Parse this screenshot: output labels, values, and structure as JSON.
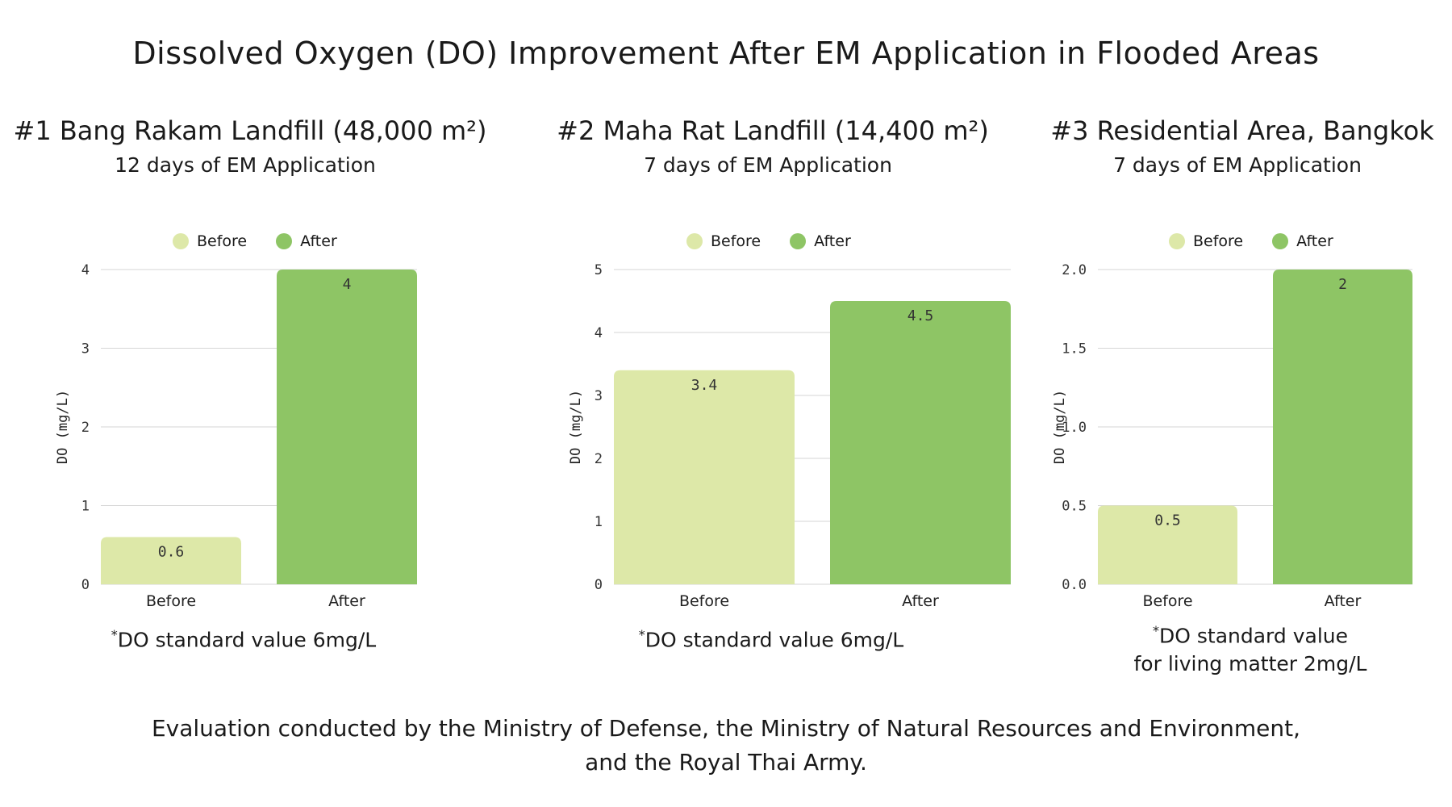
{
  "title": "Dissolved Oxygen (DO) Improvement After EM Application in Flooded Areas",
  "footer": {
    "line1": "Evaluation conducted by the Ministry of Defense, the Ministry of Natural Resources and Environment,",
    "line2": "and the Royal Thai Army."
  },
  "colors": {
    "before": "#dde8a8",
    "after": "#8ec565",
    "grid": "#d6d6d6"
  },
  "panels": [
    {
      "title": "#1 Bang Rakam Landfill (48,000 m²)",
      "subtitle": "12 days of EM Application",
      "note_mark": "*",
      "note_line1": "DO standard value 6mg/L",
      "note_line2": ""
    },
    {
      "title": "#2 Maha Rat Landfill (14,400 m²)",
      "subtitle": "7 days of EM Application",
      "note_mark": "*",
      "note_line1": "DO standard value 6mg/L",
      "note_line2": ""
    },
    {
      "title": "#3 Residential Area, Bangkok",
      "subtitle": "7 days of EM Application",
      "note_mark": "*",
      "note_line1": "DO standard value",
      "note_line2": "for living matter 2mg/L"
    }
  ],
  "chart_data": [
    {
      "type": "bar",
      "title": "#1 Bang Rakam Landfill (48,000 m²)",
      "categories": [
        "Before",
        "After"
      ],
      "values": [
        0.6,
        4
      ],
      "value_labels": [
        "0.6",
        "4"
      ],
      "legend": [
        "Before",
        "After"
      ],
      "ylabel": "DO (mg/L)",
      "xlabel": "",
      "ylim": [
        0,
        4
      ],
      "yticks": [
        0,
        1,
        2,
        3,
        4
      ],
      "ytick_labels": [
        "0",
        "1",
        "2",
        "3",
        "4"
      ]
    },
    {
      "type": "bar",
      "title": "#2 Maha Rat Landfill (14,400 m²)",
      "categories": [
        "Before",
        "After"
      ],
      "values": [
        3.4,
        4.5
      ],
      "value_labels": [
        "3.4",
        "4.5"
      ],
      "legend": [
        "Before",
        "After"
      ],
      "ylabel": "DO (mg/L)",
      "xlabel": "",
      "ylim": [
        0,
        5
      ],
      "yticks": [
        0,
        1,
        2,
        3,
        4,
        5
      ],
      "ytick_labels": [
        "0",
        "1",
        "2",
        "3",
        "4",
        "5"
      ]
    },
    {
      "type": "bar",
      "title": "#3 Residential Area, Bangkok",
      "categories": [
        "Before",
        "After"
      ],
      "values": [
        0.5,
        2
      ],
      "value_labels": [
        "0.5",
        "2"
      ],
      "legend": [
        "Before",
        "After"
      ],
      "ylabel": "DO (mg/L)",
      "xlabel": "",
      "ylim": [
        0,
        2
      ],
      "yticks": [
        0,
        0.5,
        1,
        1.5,
        2
      ],
      "ytick_labels": [
        "0.0",
        "0.5",
        "1.0",
        "1.5",
        "2.0"
      ]
    }
  ]
}
